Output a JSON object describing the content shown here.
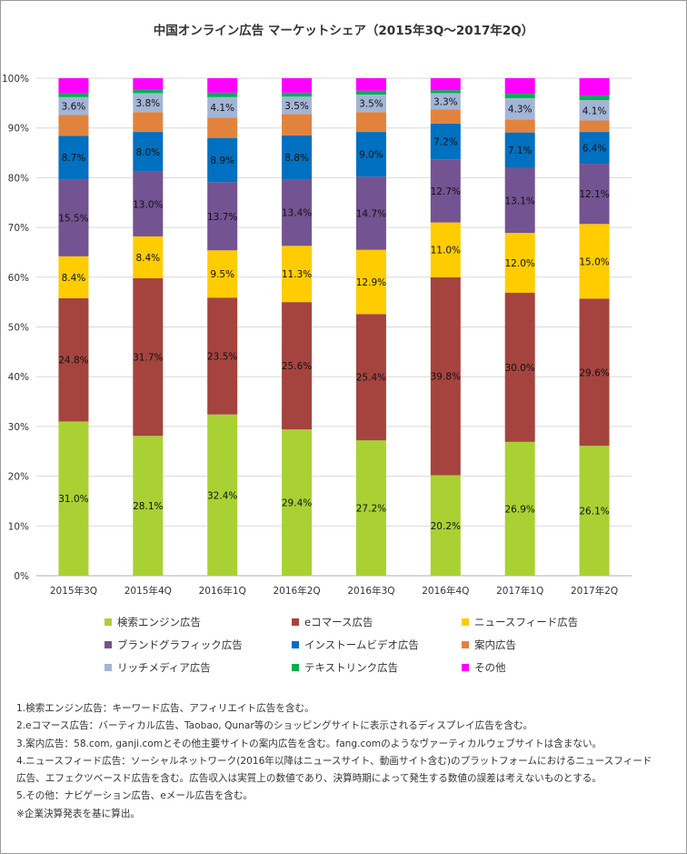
{
  "chart_data": {
    "type": "bar",
    "stacked": true,
    "title": "中国オンライン広告 マーケットシェア（2015年3Q～2017年2Q）",
    "categories": [
      "2015年3Q",
      "2015年4Q",
      "2016年1Q",
      "2016年2Q",
      "2016年3Q",
      "2016年4Q",
      "2017年1Q",
      "2017年2Q"
    ],
    "ylim": [
      0,
      100
    ],
    "yticks": [
      "0%",
      "10%",
      "20%",
      "30%",
      "40%",
      "50%",
      "60%",
      "70%",
      "80%",
      "90%",
      "100%"
    ],
    "grid": true,
    "legend_position": "bottom",
    "series": [
      {
        "name": "検索エンジン広告",
        "color": "#a9d134",
        "values": [
          31.0,
          28.1,
          32.4,
          29.4,
          27.2,
          20.2,
          26.9,
          26.1
        ],
        "labels": [
          "31.0%",
          "28.1%",
          "32.4%",
          "29.4%",
          "27.2%",
          "20.2%",
          "26.9%",
          "26.1%"
        ]
      },
      {
        "name": "eコマース広告",
        "color": "#a5443f",
        "values": [
          24.8,
          31.7,
          23.5,
          25.6,
          25.4,
          39.8,
          30.0,
          29.6
        ],
        "labels": [
          "24.8%",
          "31.7%",
          "23.5%",
          "25.6%",
          "25.4%",
          "39.8%",
          "30.0%",
          "29.6%"
        ]
      },
      {
        "name": "ニュースフィード広告",
        "color": "#ffcc00",
        "values": [
          8.4,
          8.4,
          9.5,
          11.3,
          12.9,
          11.0,
          12.0,
          15.0
        ],
        "labels": [
          "8.4%",
          "8.4%",
          "9.5%",
          "11.3%",
          "12.9%",
          "11.0%",
          "12.0%",
          "15.0%"
        ]
      },
      {
        "name": "ブランドグラフィック広告",
        "color": "#735391",
        "values": [
          15.5,
          13.0,
          13.7,
          13.4,
          14.7,
          12.7,
          13.1,
          12.1
        ],
        "labels": [
          "15.5%",
          "13.0%",
          "13.7%",
          "13.4%",
          "14.7%",
          "12.7%",
          "13.1%",
          "12.1%"
        ]
      },
      {
        "name": "インストームビデオ広告",
        "color": "#0070c0",
        "values": [
          8.7,
          8.0,
          8.9,
          8.8,
          9.0,
          7.2,
          7.1,
          6.4
        ],
        "labels": [
          "8.7%",
          "8.0%",
          "8.9%",
          "8.8%",
          "9.0%",
          "7.2%",
          "7.1%",
          "6.4%"
        ]
      },
      {
        "name": "案内広告",
        "color": "#e2833d",
        "values": [
          4.2,
          4.0,
          4.1,
          4.3,
          4.0,
          2.8,
          2.6,
          2.3
        ]
      },
      {
        "name": "リッチメディア広告",
        "color": "#a3b5d6",
        "values": [
          3.6,
          3.8,
          4.1,
          3.5,
          3.5,
          3.3,
          4.3,
          4.1
        ],
        "labels": [
          "3.6%",
          "3.8%",
          "4.1%",
          "3.5%",
          "3.5%",
          "3.3%",
          "4.3%",
          "4.1%"
        ]
      },
      {
        "name": "テキストリンク広告",
        "color": "#00b050",
        "values": [
          0.8,
          0.8,
          0.9,
          0.8,
          0.8,
          0.6,
          0.9,
          0.9
        ]
      },
      {
        "name": "その他",
        "color": "#ff00ff",
        "values": [
          3.0,
          2.2,
          2.9,
          2.9,
          2.5,
          2.4,
          3.1,
          3.5
        ]
      }
    ]
  },
  "notes": [
    "1.検索エンジン広告：キーワード広告、アフィリエイト広告を含む。",
    "2.eコマース広告：バーティカル広告、Taobao, Qunar等のショッピングサイトに表示されるディスプレイ広告を含む。",
    "3.案内広告：58.com, ganji.comとその他主要サイトの案内広告を含む。fang.comのようなヴァーティカルウェブサイトは含まない。",
    "4.ニュースフィード広告：ソーシャルネットワーク(2016年以降はニュースサイト、動画サイト含む)のプラットフォームにおけるニュースフィード",
    "広告、エフェクツベースド広告を含む。広告収入は実質上の数値であり、決算時期によって発生する数値の誤差は考えないものとする。",
    "5.その他：ナビゲーション広告、eメール広告を含む。",
    "※企業決算発表を基に算出。"
  ]
}
